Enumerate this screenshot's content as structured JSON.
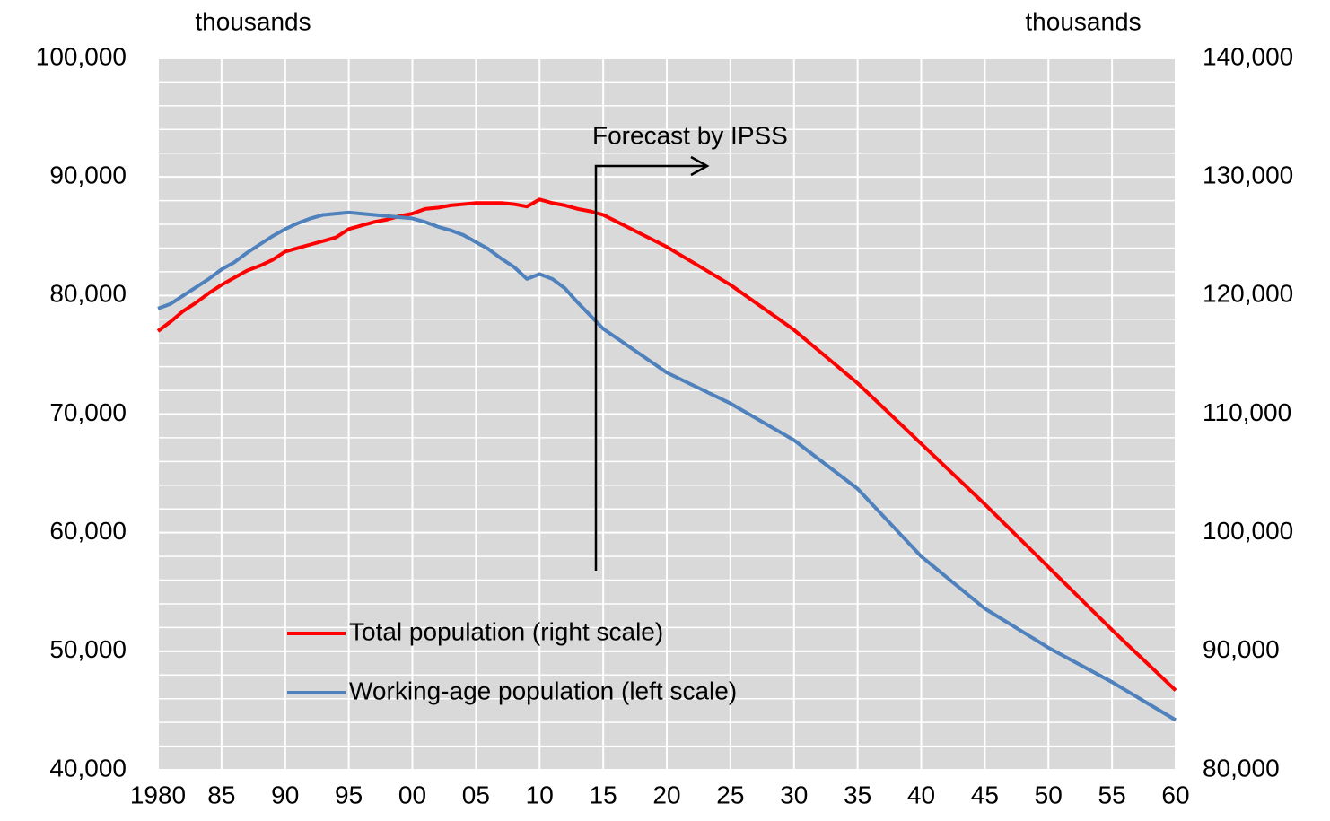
{
  "chart_data": {
    "type": "line",
    "ylabel": "thousands",
    "y2label": "thousands",
    "annotation": "Forecast by IPSS",
    "x": [
      1980,
      1981,
      1982,
      1983,
      1984,
      1985,
      1986,
      1987,
      1988,
      1989,
      1990,
      1991,
      1992,
      1993,
      1994,
      1995,
      1996,
      1997,
      1998,
      1999,
      2000,
      2001,
      2002,
      2003,
      2004,
      2005,
      2006,
      2007,
      2008,
      2009,
      2010,
      2011,
      2012,
      2013,
      2014,
      2015,
      2020,
      2025,
      2030,
      2035,
      2040,
      2045,
      2050,
      2055,
      2060
    ],
    "series": [
      {
        "name": "Total population (right scale)",
        "color": "#ff0000",
        "axis": "y2",
        "values": [
          117000,
          117800,
          118700,
          119400,
          120200,
          120900,
          121500,
          122100,
          122500,
          123000,
          123700,
          124000,
          124300,
          124600,
          124900,
          125600,
          125900,
          126200,
          126400,
          126700,
          126900,
          127300,
          127400,
          127600,
          127700,
          127800,
          127800,
          127800,
          127700,
          127500,
          128100,
          127800,
          127600,
          127300,
          127100,
          126800,
          124100,
          120900,
          117100,
          112600,
          107500,
          102400,
          97100,
          91800,
          86700
        ]
      },
      {
        "name": "Working-age population (left scale)",
        "color": "#4f81bd",
        "values": [
          78900,
          79300,
          80000,
          80700,
          81400,
          82200,
          82800,
          83600,
          84300,
          85000,
          85600,
          86100,
          86500,
          86800,
          86900,
          87000,
          86900,
          86800,
          86700,
          86600,
          86500,
          86200,
          85800,
          85500,
          85100,
          84500,
          83900,
          83100,
          82400,
          81400,
          81800,
          81400,
          80600,
          79400,
          78300,
          77200,
          73500,
          70900,
          67800,
          63700,
          58000,
          53600,
          50300,
          47400,
          44200
        ]
      }
    ],
    "xlim": [
      1980,
      2060
    ],
    "xticks": [
      {
        "value": 1980,
        "label": "1980"
      },
      {
        "value": 1985,
        "label": "85"
      },
      {
        "value": 1990,
        "label": "90"
      },
      {
        "value": 1995,
        "label": "95"
      },
      {
        "value": 2000,
        "label": "00"
      },
      {
        "value": 2005,
        "label": "05"
      },
      {
        "value": 2010,
        "label": "10"
      },
      {
        "value": 2015,
        "label": "15"
      },
      {
        "value": 2020,
        "label": "20"
      },
      {
        "value": 2025,
        "label": "25"
      },
      {
        "value": 2030,
        "label": "30"
      },
      {
        "value": 2035,
        "label": "35"
      },
      {
        "value": 2040,
        "label": "40"
      },
      {
        "value": 2045,
        "label": "45"
      },
      {
        "value": 2050,
        "label": "50"
      },
      {
        "value": 2055,
        "label": "55"
      },
      {
        "value": 2060,
        "label": "60"
      }
    ],
    "ylim": [
      40000,
      100000
    ],
    "yticks": [
      {
        "value": 40000,
        "label": "40,000"
      },
      {
        "value": 50000,
        "label": "50,000"
      },
      {
        "value": 60000,
        "label": "60,000"
      },
      {
        "value": 70000,
        "label": "70,000"
      },
      {
        "value": 80000,
        "label": "80,000"
      },
      {
        "value": 90000,
        "label": "90,000"
      },
      {
        "value": 100000,
        "label": "100,000"
      }
    ],
    "yminorticks": [
      42000,
      44000,
      46000,
      48000,
      52000,
      54000,
      56000,
      58000,
      62000,
      64000,
      66000,
      68000,
      72000,
      74000,
      76000,
      78000,
      82000,
      84000,
      86000,
      88000,
      92000,
      94000,
      96000,
      98000
    ],
    "y2lim": [
      80000,
      140000
    ],
    "y2ticks": [
      {
        "value": 80000,
        "label": "80,000"
      },
      {
        "value": 90000,
        "label": "90,000"
      },
      {
        "value": 100000,
        "label": "100,000"
      },
      {
        "value": 110000,
        "label": "110,000"
      },
      {
        "value": 120000,
        "label": "120,000"
      },
      {
        "value": 130000,
        "label": "130,000"
      },
      {
        "value": 140000,
        "label": "140,000"
      }
    ],
    "grid": true
  }
}
